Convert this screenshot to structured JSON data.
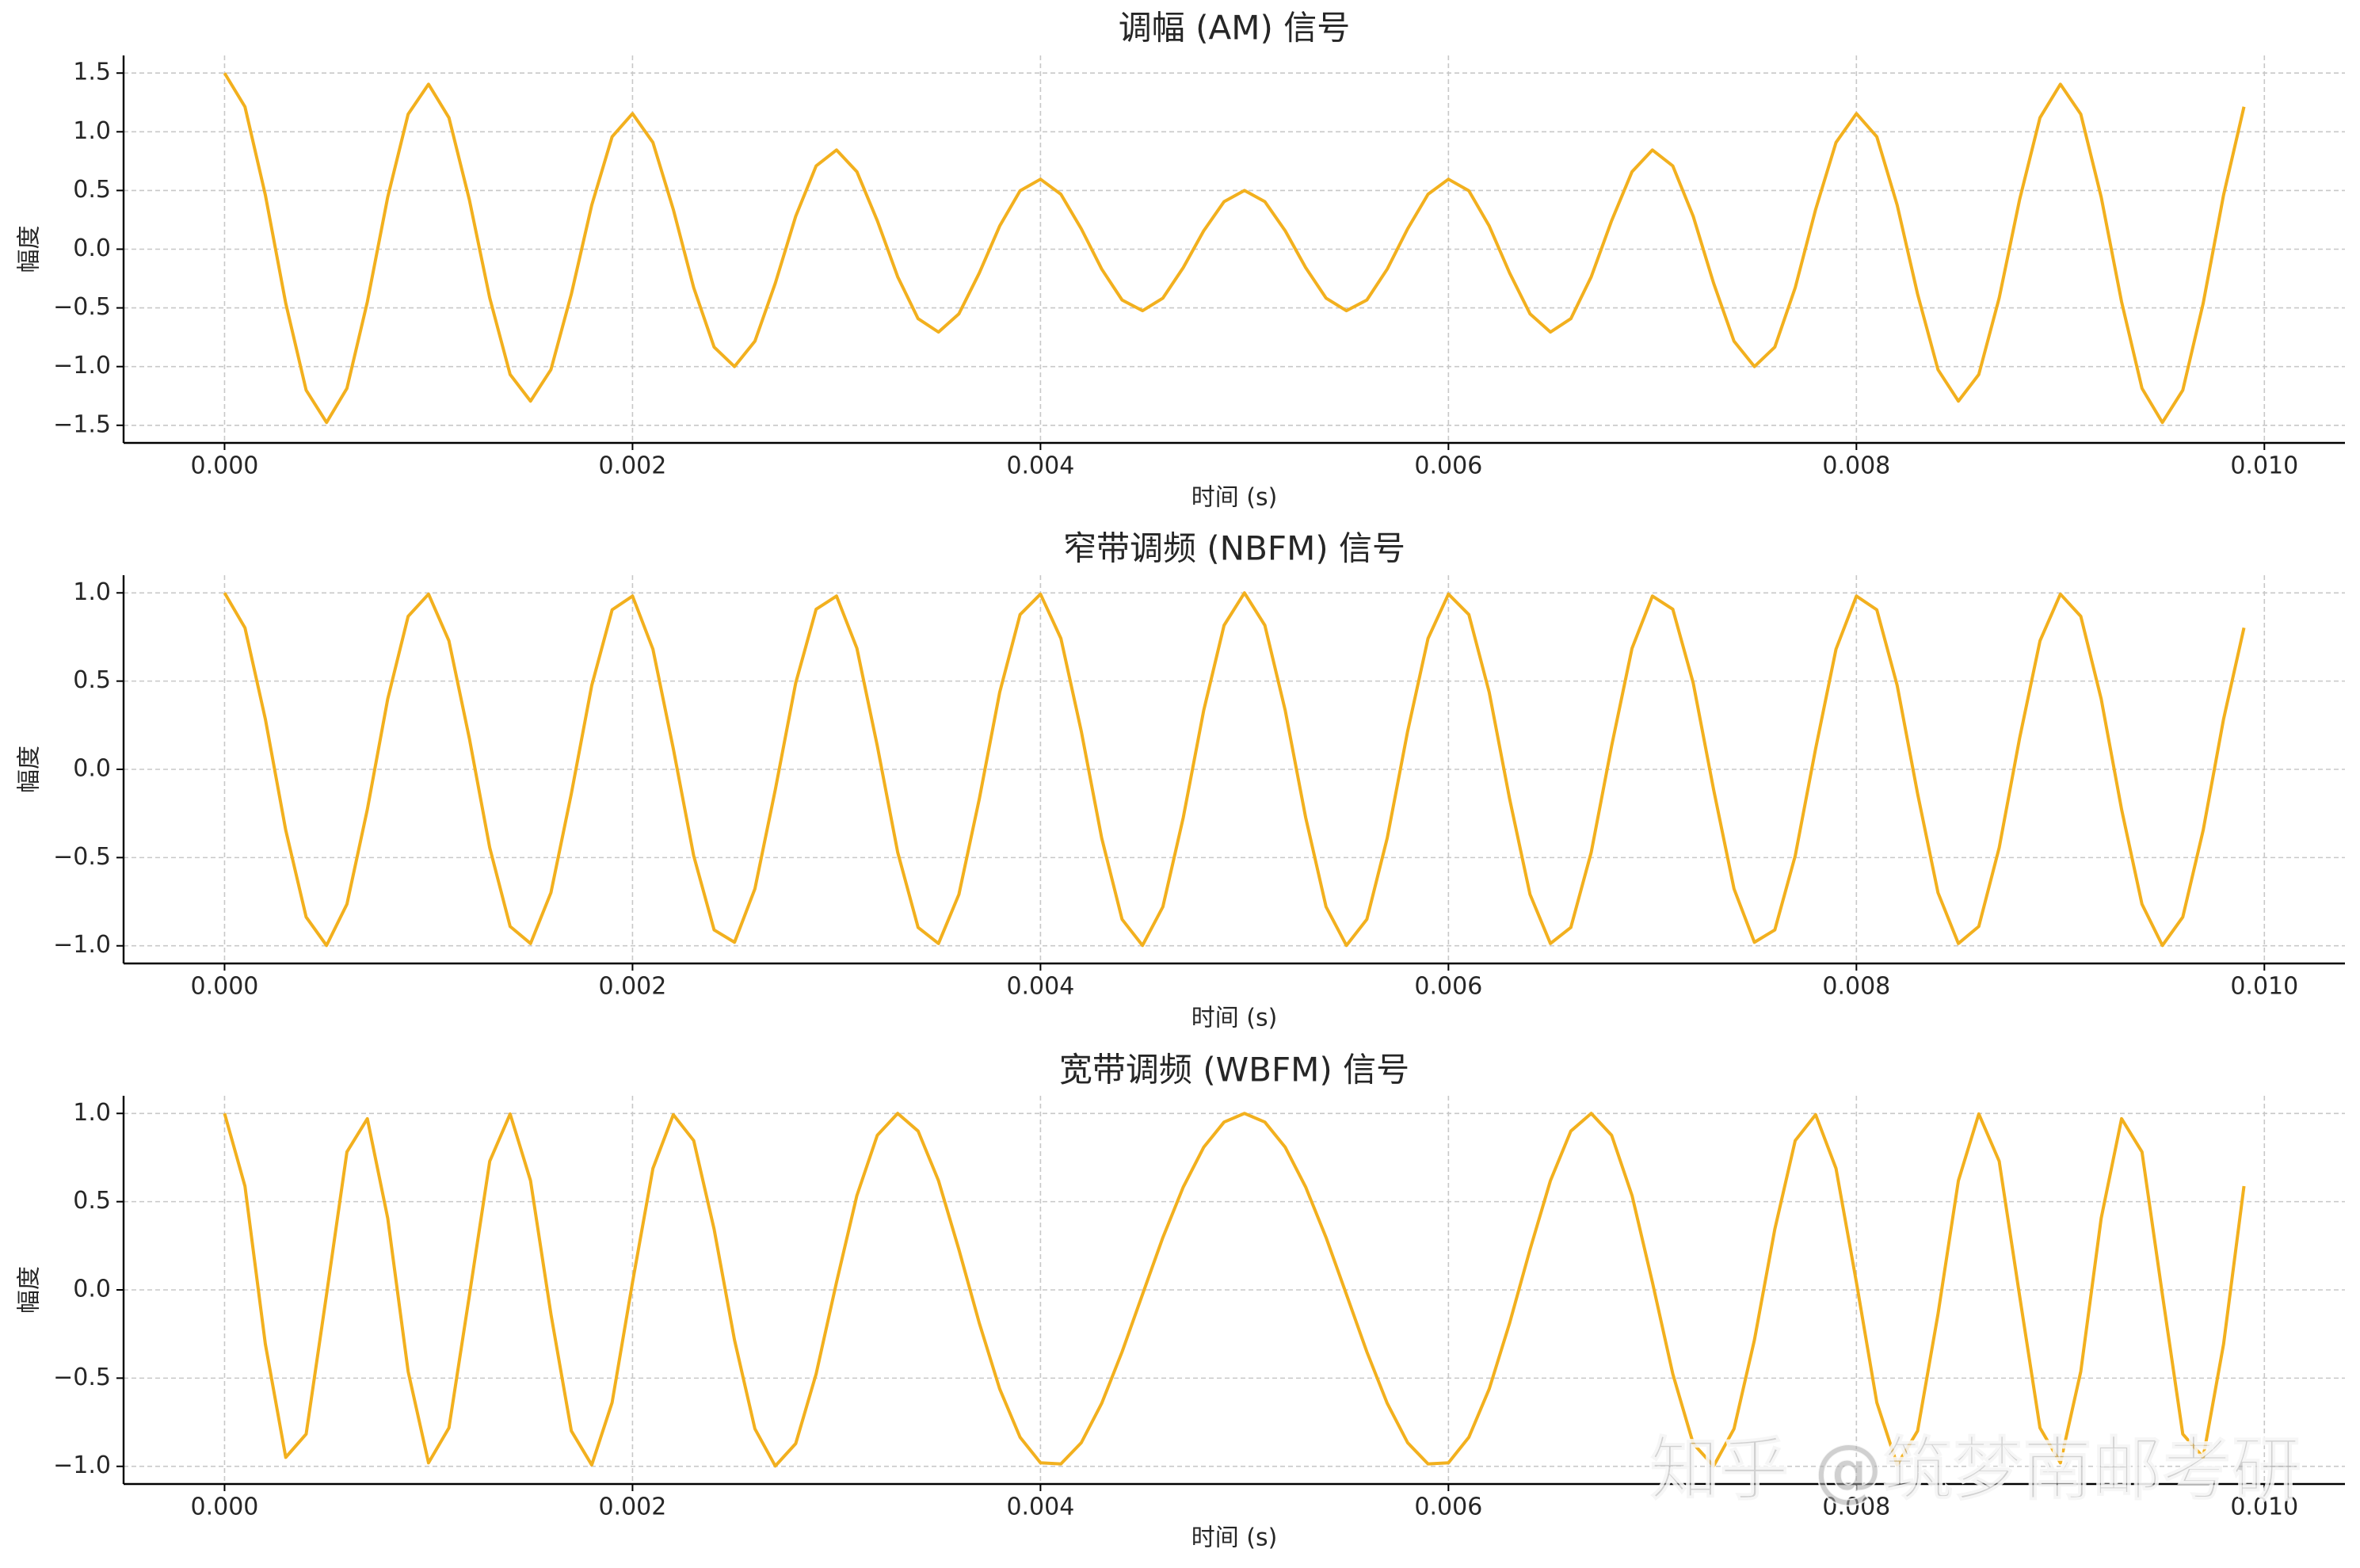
{
  "chart_data": [
    {
      "type": "line",
      "title": "调幅 (AM) 信号",
      "xlabel": "时间 (s)",
      "ylabel": "幅度",
      "color": "#f2b01e",
      "grid": true,
      "xlim": [
        -0.000495,
        0.010395
      ],
      "ylim": [
        -1.65,
        1.65
      ],
      "xticks": [
        {
          "value": 0,
          "label": "0.000"
        },
        {
          "value": 0.002,
          "label": "0.002"
        },
        {
          "value": 0.004,
          "label": "0.004"
        },
        {
          "value": 0.006,
          "label": "0.006"
        },
        {
          "value": 0.008,
          "label": "0.008"
        },
        {
          "value": 0.01,
          "label": "0.010"
        }
      ],
      "yticks": [
        {
          "value": -1.5,
          "label": "−1.5"
        },
        {
          "value": -1,
          "label": "−1.0"
        },
        {
          "value": -0.5,
          "label": "−0.5"
        },
        {
          "value": 0,
          "label": "0.0"
        },
        {
          "value": 0.5,
          "label": "0.5"
        },
        {
          "value": 1,
          "label": "1.0"
        },
        {
          "value": 1.5,
          "label": "1.5"
        }
      ],
      "x": [
        0,
        0.0001,
        0.0002,
        0.0003,
        0.0004,
        0.0005,
        0.0006,
        0.0007,
        0.0008,
        0.0009,
        0.001,
        0.0011,
        0.0012,
        0.0013,
        0.0014,
        0.0015,
        0.0016,
        0.0017,
        0.0018,
        0.0019,
        0.002,
        0.0021,
        0.0022,
        0.0023,
        0.0024,
        0.0025,
        0.0026,
        0.0027,
        0.0028,
        0.0029,
        0.003,
        0.0031,
        0.0032,
        0.0033,
        0.0034,
        0.0035,
        0.0036,
        0.0037,
        0.0038,
        0.0039,
        0.004,
        0.0041,
        0.0042,
        0.0043,
        0.0044,
        0.0045,
        0.0046,
        0.0047,
        0.0048,
        0.0049,
        0.005,
        0.0051,
        0.0052,
        0.0053,
        0.0054,
        0.0055,
        0.0056,
        0.0057,
        0.0058,
        0.0059,
        0.006,
        0.0061,
        0.0062,
        0.0063,
        0.0064,
        0.0065,
        0.0066,
        0.0067,
        0.0068,
        0.0069,
        0.007,
        0.0071,
        0.0072,
        0.0073,
        0.0074,
        0.0075,
        0.0076,
        0.0077,
        0.0078,
        0.0079,
        0.008,
        0.0081,
        0.0082,
        0.0083,
        0.0084,
        0.0085,
        0.0086,
        0.0087,
        0.0088,
        0.0089,
        0.009,
        0.0091,
        0.0092,
        0.0093,
        0.0094,
        0.0095,
        0.0096,
        0.0097,
        0.0098,
        0.0099
      ],
      "values": [
        1.5,
        1.213,
        0.462,
        -0.461,
        -1.201,
        -1.476,
        -1.185,
        -0.449,
        0.444,
        1.15,
        1.405,
        1.12,
        0.422,
        -0.415,
        -1.067,
        -1.294,
        -1.026,
        -0.383,
        0.375,
        0.958,
        1.155,
        0.909,
        0.338,
        -0.328,
        -0.834,
        -1.0,
        -0.784,
        -0.29,
        0.28,
        0.709,
        0.845,
        0.66,
        0.243,
        -0.235,
        -0.592,
        -0.706,
        -0.551,
        -0.203,
        0.197,
        0.498,
        0.596,
        0.468,
        0.174,
        -0.169,
        -0.433,
        -0.524,
        -0.417,
        -0.157,
        0.156,
        0.405,
        0.5,
        0.405,
        0.156,
        -0.157,
        -0.417,
        -0.524,
        -0.433,
        -0.169,
        0.174,
        0.468,
        0.596,
        0.498,
        0.197,
        -0.203,
        -0.551,
        -0.706,
        -0.592,
        -0.235,
        0.243,
        0.66,
        0.845,
        0.709,
        0.28,
        -0.29,
        -0.784,
        -1.0,
        -0.834,
        -0.328,
        0.338,
        0.909,
        1.155,
        0.958,
        0.375,
        -0.383,
        -1.026,
        -1.294,
        -1.067,
        -0.415,
        0.422,
        1.12,
        1.405,
        1.15,
        0.444,
        -0.449,
        -1.185,
        -1.476,
        -1.201,
        -0.461,
        0.462,
        1.213
      ]
    },
    {
      "type": "line",
      "title": "窄带调频 (NBFM) 信号",
      "xlabel": "时间 (s)",
      "ylabel": "幅度",
      "color": "#f2b01e",
      "grid": true,
      "xlim": [
        -0.000495,
        0.010395
      ],
      "ylim": [
        -1.1,
        1.1
      ],
      "xticks": [
        {
          "value": 0,
          "label": "0.000"
        },
        {
          "value": 0.002,
          "label": "0.002"
        },
        {
          "value": 0.004,
          "label": "0.004"
        },
        {
          "value": 0.006,
          "label": "0.006"
        },
        {
          "value": 0.008,
          "label": "0.008"
        },
        {
          "value": 0.01,
          "label": "0.010"
        }
      ],
      "yticks": [
        {
          "value": -1,
          "label": "−1.0"
        },
        {
          "value": -0.5,
          "label": "−0.5"
        },
        {
          "value": 0,
          "label": "0.0"
        },
        {
          "value": 0.5,
          "label": "0.5"
        },
        {
          "value": 1,
          "label": "1.0"
        }
      ],
      "x": [
        0,
        0.0001,
        0.0002,
        0.0003,
        0.0004,
        0.0005,
        0.0006,
        0.0007,
        0.0008,
        0.0009,
        0.001,
        0.0011,
        0.0012,
        0.0013,
        0.0014,
        0.0015,
        0.0016,
        0.0017,
        0.0018,
        0.0019,
        0.002,
        0.0021,
        0.0022,
        0.0023,
        0.0024,
        0.0025,
        0.0026,
        0.0027,
        0.0028,
        0.0029,
        0.003,
        0.0031,
        0.0032,
        0.0033,
        0.0034,
        0.0035,
        0.0036,
        0.0037,
        0.0038,
        0.0039,
        0.004,
        0.0041,
        0.0042,
        0.0043,
        0.0044,
        0.0045,
        0.0046,
        0.0047,
        0.0048,
        0.0049,
        0.005,
        0.0051,
        0.0052,
        0.0053,
        0.0054,
        0.0055,
        0.0056,
        0.0057,
        0.0058,
        0.0059,
        0.006,
        0.0061,
        0.0062,
        0.0063,
        0.0064,
        0.0065,
        0.0066,
        0.0067,
        0.0068,
        0.0069,
        0.007,
        0.0071,
        0.0072,
        0.0073,
        0.0074,
        0.0075,
        0.0076,
        0.0077,
        0.0078,
        0.0079,
        0.008,
        0.0081,
        0.0082,
        0.0083,
        0.0084,
        0.0085,
        0.0086,
        0.0087,
        0.0088,
        0.0089,
        0.009,
        0.0091,
        0.0092,
        0.0093,
        0.0094,
        0.0095,
        0.0096,
        0.0097,
        0.0098,
        0.0099
      ],
      "values": [
        1.0,
        0.802,
        0.285,
        -0.345,
        -0.837,
        -0.998,
        -0.764,
        -0.227,
        0.399,
        0.867,
        0.993,
        0.728,
        0.176,
        -0.444,
        -0.89,
        -0.987,
        -0.699,
        -0.138,
        0.475,
        0.904,
        0.982,
        0.681,
        0.117,
        -0.49,
        -0.91,
        -0.98,
        -0.677,
        -0.115,
        0.489,
        0.907,
        0.982,
        0.686,
        0.133,
        -0.47,
        -0.896,
        -0.987,
        -0.709,
        -0.168,
        0.436,
        0.877,
        0.993,
        0.742,
        0.216,
        -0.389,
        -0.85,
        -0.998,
        -0.779,
        -0.273,
        0.333,
        0.816,
        1.0,
        0.816,
        0.333,
        -0.273,
        -0.779,
        -0.998,
        -0.85,
        -0.389,
        0.216,
        0.742,
        0.993,
        0.877,
        0.436,
        -0.168,
        -0.709,
        -0.987,
        -0.896,
        -0.47,
        0.133,
        0.686,
        0.982,
        0.907,
        0.489,
        -0.115,
        -0.677,
        -0.98,
        -0.91,
        -0.49,
        0.117,
        0.681,
        0.982,
        0.904,
        0.475,
        -0.138,
        -0.699,
        -0.987,
        -0.89,
        -0.444,
        0.176,
        0.728,
        0.993,
        0.867,
        0.399,
        -0.227,
        -0.764,
        -0.998,
        -0.837,
        -0.345,
        0.285,
        0.802
      ]
    },
    {
      "type": "line",
      "title": "宽带调频 (WBFM) 信号",
      "xlabel": "时间 (s)",
      "ylabel": "幅度",
      "color": "#f2b01e",
      "grid": true,
      "xlim": [
        -0.000495,
        0.010395
      ],
      "ylim": [
        -1.1,
        1.1
      ],
      "xticks": [
        {
          "value": 0,
          "label": "0.000"
        },
        {
          "value": 0.002,
          "label": "0.002"
        },
        {
          "value": 0.004,
          "label": "0.004"
        },
        {
          "value": 0.006,
          "label": "0.006"
        },
        {
          "value": 0.008,
          "label": "0.008"
        },
        {
          "value": 0.01,
          "label": "0.010"
        }
      ],
      "yticks": [
        {
          "value": -1,
          "label": "−1.0"
        },
        {
          "value": -0.5,
          "label": "−0.5"
        },
        {
          "value": 0,
          "label": "0.0"
        },
        {
          "value": 0.5,
          "label": "0.5"
        },
        {
          "value": 1,
          "label": "1.0"
        }
      ],
      "x": [
        0,
        0.0001,
        0.0002,
        0.0003,
        0.0004,
        0.0005,
        0.0006,
        0.0007,
        0.0008,
        0.0009,
        0.001,
        0.0011,
        0.0012,
        0.0013,
        0.0014,
        0.0015,
        0.0016,
        0.0017,
        0.0018,
        0.0019,
        0.002,
        0.0021,
        0.0022,
        0.0023,
        0.0024,
        0.0025,
        0.0026,
        0.0027,
        0.0028,
        0.0029,
        0.003,
        0.0031,
        0.0032,
        0.0033,
        0.0034,
        0.0035,
        0.0036,
        0.0037,
        0.0038,
        0.0039,
        0.004,
        0.0041,
        0.0042,
        0.0043,
        0.0044,
        0.0045,
        0.0046,
        0.0047,
        0.0048,
        0.0049,
        0.005,
        0.0051,
        0.0052,
        0.0053,
        0.0054,
        0.0055,
        0.0056,
        0.0057,
        0.0058,
        0.0059,
        0.006,
        0.0061,
        0.0062,
        0.0063,
        0.0064,
        0.0065,
        0.0066,
        0.0067,
        0.0068,
        0.0069,
        0.007,
        0.0071,
        0.0072,
        0.0073,
        0.0074,
        0.0075,
        0.0076,
        0.0077,
        0.0078,
        0.0079,
        0.008,
        0.0081,
        0.0082,
        0.0083,
        0.0084,
        0.0085,
        0.0086,
        0.0087,
        0.0088,
        0.0089,
        0.009,
        0.0091,
        0.0092,
        0.0093,
        0.0094,
        0.0095,
        0.0096,
        0.0097,
        0.0098,
        0.0099
      ],
      "values": [
        1.0,
        0.588,
        -0.307,
        -0.949,
        -0.817,
        -0.026,
        0.782,
        0.97,
        0.406,
        -0.462,
        -0.98,
        -0.782,
        -0.033,
        0.729,
        0.997,
        0.619,
        -0.137,
        -0.799,
        -0.992,
        -0.638,
        0.043,
        0.688,
        0.993,
        0.846,
        0.344,
        -0.284,
        -0.787,
        -0.998,
        -0.871,
        -0.477,
        0.043,
        0.535,
        0.876,
        1.0,
        0.9,
        0.619,
        0.229,
        -0.188,
        -0.561,
        -0.835,
        -0.98,
        -0.986,
        -0.866,
        -0.643,
        -0.351,
        -0.026,
        0.297,
        0.583,
        0.808,
        0.951,
        1.0,
        0.951,
        0.808,
        0.583,
        0.297,
        -0.026,
        -0.351,
        -0.643,
        -0.866,
        -0.986,
        -0.98,
        -0.835,
        -0.561,
        -0.188,
        0.229,
        0.619,
        0.9,
        1.0,
        0.876,
        0.535,
        0.043,
        -0.477,
        -0.871,
        -0.998,
        -0.787,
        -0.284,
        0.344,
        0.846,
        0.993,
        0.688,
        0.043,
        -0.638,
        -0.992,
        -0.799,
        -0.137,
        0.619,
        0.997,
        0.729,
        -0.033,
        -0.782,
        -0.98,
        -0.462,
        0.406,
        0.97,
        0.782,
        -0.026,
        -0.817,
        -0.949,
        -0.307,
        0.588
      ]
    }
  ],
  "watermark": "知乎 @筑梦南邮考研"
}
